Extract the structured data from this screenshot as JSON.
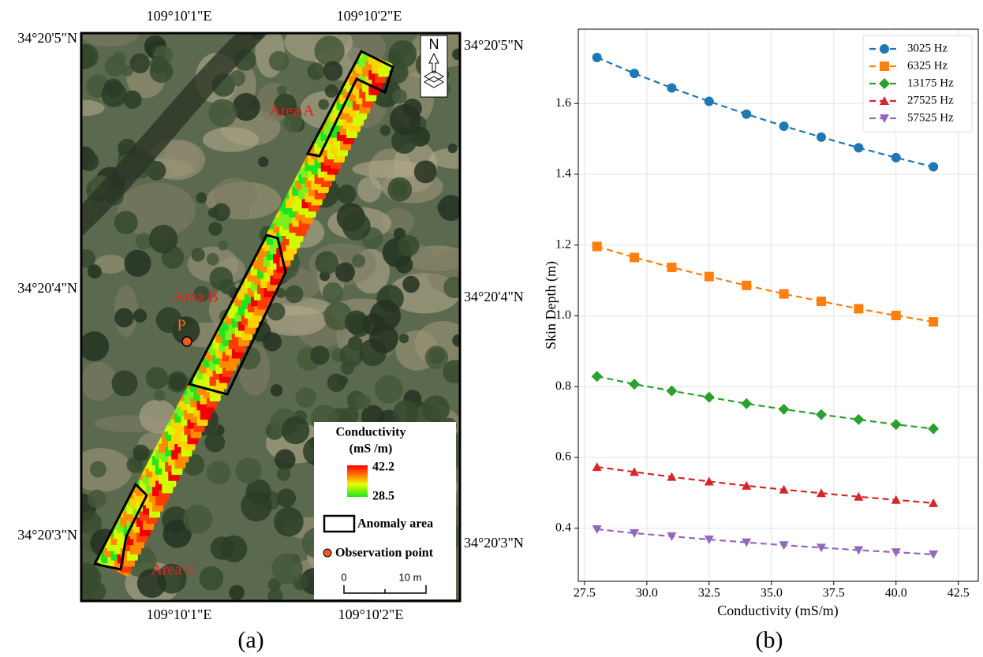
{
  "map": {
    "top_labels": [
      "109°10'1\"E",
      "109°10'2\"E"
    ],
    "bottom_labels": [
      "109°10'1\"E",
      "109°10'2\"E"
    ],
    "left_labels": [
      "34°20'5\"N",
      "34°20'4\"N",
      "34°20'3\"N"
    ],
    "right_labels": [
      "34°20'5\"N",
      "34°20'4\"N",
      "34°20'3\"N"
    ],
    "areas": [
      "Area A",
      "Area B",
      "Area C"
    ],
    "point": "P",
    "north": "N",
    "legend": {
      "title": "Conductivity",
      "unit": "(mS /m)",
      "max": "42.2",
      "min": "28.5",
      "anomaly": "Anomaly area",
      "observation": "Observation point"
    },
    "scale": [
      "0",
      "10 m"
    ],
    "caption": "(a)"
  },
  "chart_data": {
    "type": "line",
    "caption": "(b)",
    "x_label": "Conductivity (mS/m)",
    "y_label": "Skin Depth (m)",
    "x": [
      28,
      29.5,
      31,
      32.5,
      34,
      35.5,
      37,
      38.5,
      40,
      41.5
    ],
    "series": [
      {
        "name": "3025 Hz",
        "color": "#1f77b4",
        "marker": "circle",
        "values": [
          1.73,
          1.685,
          1.644,
          1.606,
          1.57,
          1.536,
          1.505,
          1.475,
          1.447,
          1.421
        ]
      },
      {
        "name": "6325 Hz",
        "color": "#ff7f0e",
        "marker": "square",
        "values": [
          1.196,
          1.165,
          1.137,
          1.111,
          1.086,
          1.062,
          1.041,
          1.02,
          1.001,
          0.983
        ]
      },
      {
        "name": "13175 Hz",
        "color": "#2ca02c",
        "marker": "diamond",
        "values": [
          0.829,
          0.807,
          0.788,
          0.77,
          0.752,
          0.736,
          0.721,
          0.707,
          0.693,
          0.681
        ]
      },
      {
        "name": "27525 Hz",
        "color": "#d62728",
        "marker": "triangle-up",
        "values": [
          0.573,
          0.559,
          0.545,
          0.532,
          0.52,
          0.509,
          0.499,
          0.489,
          0.48,
          0.471
        ]
      },
      {
        "name": "57525 Hz",
        "color": "#9467bd",
        "marker": "triangle-down",
        "values": [
          0.397,
          0.386,
          0.377,
          0.368,
          0.36,
          0.352,
          0.345,
          0.338,
          0.332,
          0.326
        ]
      }
    ],
    "xlim": [
      27.25,
      43.3
    ],
    "ylim": [
      0.25,
      1.81
    ],
    "xticks": [
      27.5,
      {
        "value": 30,
        "label": "30.0"
      },
      32.5,
      {
        "value": 35,
        "label": "35.0"
      },
      37.5,
      {
        "value": 40,
        "label": "40.0"
      },
      42.5
    ],
    "yticks": [
      0.4,
      0.6,
      0.8,
      {
        "value": 1,
        "label": "1.0"
      },
      1.2,
      1.4,
      1.6
    ],
    "grid": true,
    "legend": "upper right"
  }
}
